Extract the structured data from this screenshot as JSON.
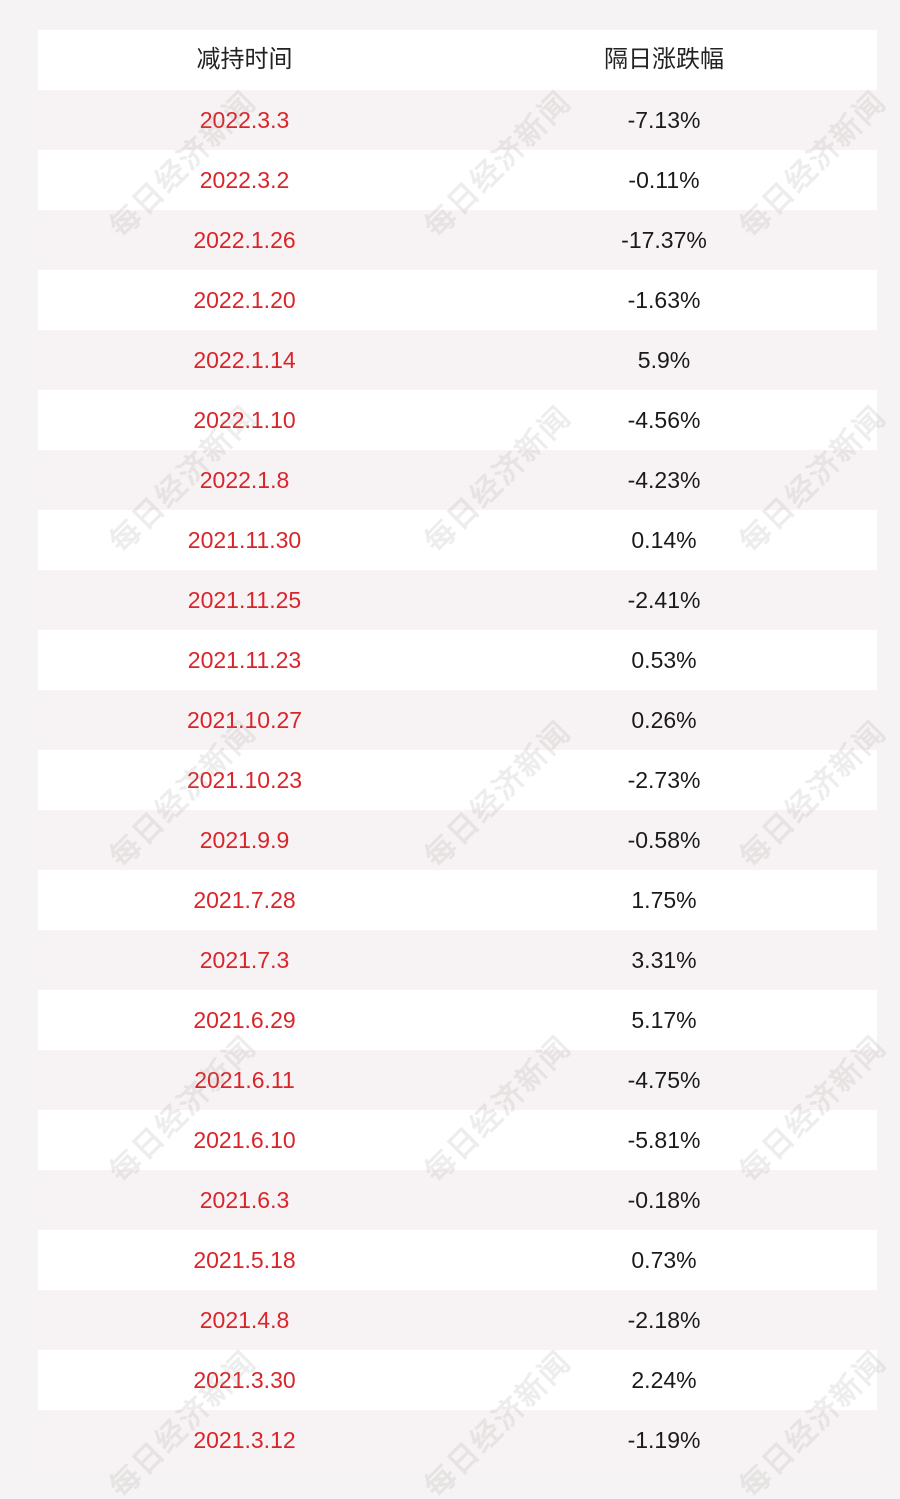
{
  "table": {
    "header": {
      "col1": "减持时间",
      "col2": "隔日涨跌幅"
    },
    "rows": [
      {
        "date": "2022.3.3",
        "change": "-7.13%"
      },
      {
        "date": "2022.3.2",
        "change": "-0.11%"
      },
      {
        "date": "2022.1.26",
        "change": "-17.37%"
      },
      {
        "date": "2022.1.20",
        "change": "-1.63%"
      },
      {
        "date": "2022.1.14",
        "change": "5.9%"
      },
      {
        "date": "2022.1.10",
        "change": "-4.56%"
      },
      {
        "date": "2022.1.8",
        "change": "-4.23%"
      },
      {
        "date": "2021.11.30",
        "change": "0.14%"
      },
      {
        "date": "2021.11.25",
        "change": "-2.41%"
      },
      {
        "date": "2021.11.23",
        "change": "0.53%"
      },
      {
        "date": "2021.10.27",
        "change": "0.26%"
      },
      {
        "date": "2021.10.23",
        "change": "-2.73%"
      },
      {
        "date": "2021.9.9",
        "change": "-0.58%"
      },
      {
        "date": "2021.7.28",
        "change": "1.75%"
      },
      {
        "date": "2021.7.3",
        "change": "3.31%"
      },
      {
        "date": "2021.6.29",
        "change": "5.17%"
      },
      {
        "date": "2021.6.11",
        "change": "-4.75%"
      },
      {
        "date": "2021.6.10",
        "change": "-5.81%"
      },
      {
        "date": "2021.6.3",
        "change": "-0.18%"
      },
      {
        "date": "2021.5.18",
        "change": "0.73%"
      },
      {
        "date": "2021.4.8",
        "change": "-2.18%"
      },
      {
        "date": "2021.3.30",
        "change": "2.24%"
      },
      {
        "date": "2021.3.12",
        "change": "-1.19%"
      }
    ]
  },
  "watermark": {
    "text": "每日经济新闻"
  },
  "colors": {
    "date_text": "#d9252a",
    "value_text": "#1a1a1a",
    "row_white": "#ffffff",
    "row_alt": "#f7f3f4",
    "background": "#f6f3f4"
  }
}
